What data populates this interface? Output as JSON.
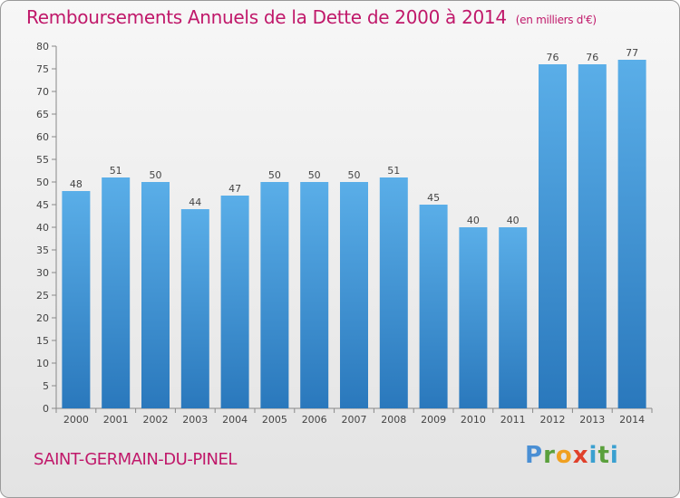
{
  "header": {
    "title": "Remboursements Annuels de la Dette de 2000 à 2014",
    "unit": "(en milliers d'€)"
  },
  "footer": {
    "town": "SAINT-GERMAIN-DU-PINEL",
    "logo": "Proxiti"
  },
  "colors": {
    "title": "#c0186a",
    "bar_top": "#5aaee8",
    "bar_bottom": "#2a78bc"
  },
  "chart_data": {
    "type": "bar",
    "categories": [
      "2000",
      "2001",
      "2002",
      "2003",
      "2004",
      "2005",
      "2006",
      "2007",
      "2008",
      "2009",
      "2010",
      "2011",
      "2012",
      "2013",
      "2014"
    ],
    "values": [
      48,
      51,
      50,
      44,
      47,
      50,
      50,
      50,
      51,
      45,
      40,
      40,
      76,
      76,
      77
    ],
    "title": "Remboursements Annuels de la Dette de 2000 à 2014",
    "subtitle": "(en milliers d'€)",
    "ylim": [
      0,
      80
    ],
    "yticks": [
      0,
      5,
      10,
      15,
      20,
      25,
      30,
      35,
      40,
      45,
      50,
      55,
      60,
      65,
      70,
      75,
      80
    ],
    "grid": false,
    "data_labels": true
  }
}
